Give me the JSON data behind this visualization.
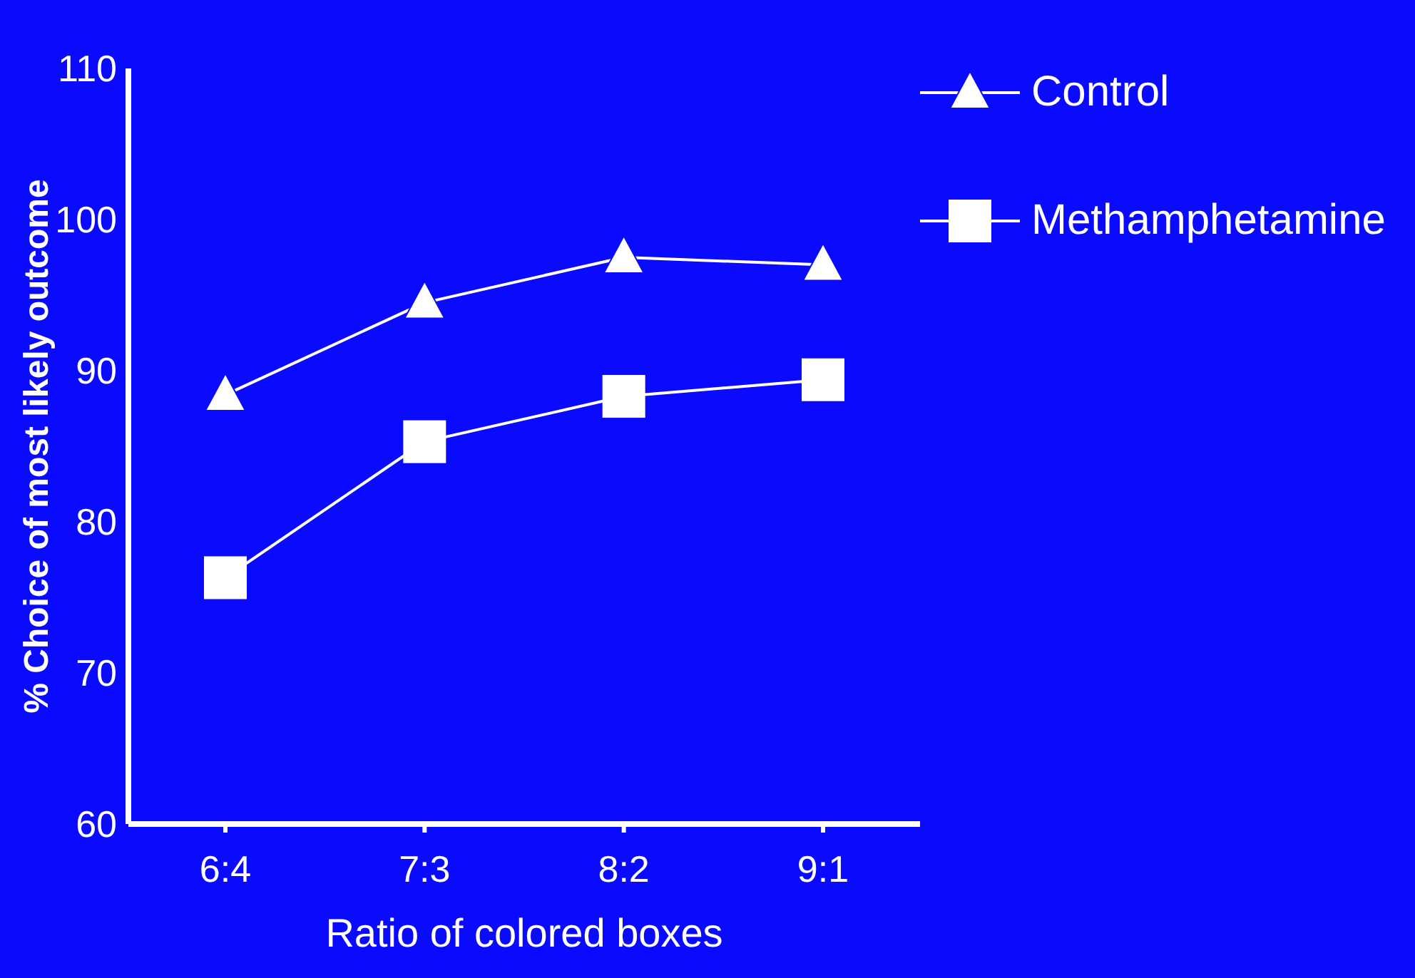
{
  "chart_data": {
    "type": "line",
    "xlabel": "Ratio of colored boxes",
    "ylabel": "% Choice of most likely outcome",
    "categories": [
      "6:4",
      "7:3",
      "8:2",
      "9:1"
    ],
    "series": [
      {
        "name": "Control",
        "color": "#ffffff",
        "marker": "triangle",
        "values": [
          88.4,
          94.5,
          97.5,
          97.0
        ]
      },
      {
        "name": "Methamphetamine",
        "color": "#ffffff",
        "marker": "square",
        "values": [
          76.3,
          85.3,
          88.3,
          89.4
        ]
      }
    ],
    "ylim": [
      60,
      110
    ],
    "yticks": [
      60,
      70,
      80,
      90,
      100,
      110
    ],
    "grid": false,
    "legend": "top right",
    "line_style": "solid"
  }
}
